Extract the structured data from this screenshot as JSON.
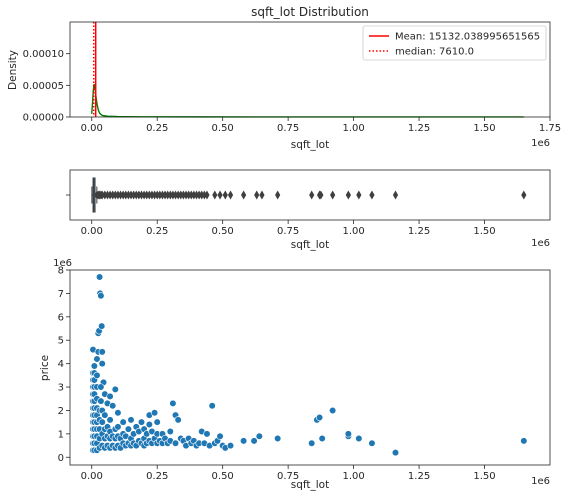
{
  "chart_data": [
    {
      "type": "line",
      "subtype": "kde",
      "title": "sqft_lot Distribution",
      "xlabel": "sqft_lot",
      "ylabel": "Density",
      "x_scale_label": "1e6",
      "xlim": [
        -0.083,
        1.75
      ],
      "ylim": [
        0,
        0.00015
      ],
      "xticks": [
        0,
        0.25,
        0.5,
        0.75,
        1.0,
        1.25,
        1.5,
        1.75
      ],
      "xtick_labels": [
        "0.00",
        "0.25",
        "0.50",
        "0.75",
        "1.00",
        "1.25",
        "1.50",
        "1.75"
      ],
      "yticks": [
        0,
        5e-05,
        0.0001
      ],
      "ytick_labels": [
        "0.00000",
        "0.00005",
        "0.00010"
      ],
      "series": [
        {
          "x": [
            0,
            0.003,
            0.006,
            0.009,
            0.012,
            0.015,
            0.02,
            0.025,
            0.03,
            0.04,
            0.06,
            0.1,
            0.2,
            0.4,
            0.8,
            1.2,
            1.65
          ],
          "values": [
            5e-06,
            2.2e-05,
            4.2e-05,
            5.2e-05,
            4.8e-05,
            3.6e-05,
            2.1e-05,
            1.1e-05,
            6e-06,
            2.5e-06,
            1.2e-06,
            6e-07,
            3e-07,
            2e-07,
            1.5e-07,
            1.2e-07,
            1e-07
          ],
          "color": "#008000"
        }
      ],
      "vlines": [
        {
          "label": "Mean: 15132.038995651565",
          "x": 0.015132,
          "color": "#ff0000",
          "style": "solid"
        },
        {
          "label": "median: 7610.0",
          "x": 0.00761,
          "color": "#ff0000",
          "style": "dotted"
        }
      ],
      "legend": "top-right",
      "grid": false
    },
    {
      "type": "box",
      "xlabel": "sqft_lot",
      "x_scale_label": "1e6",
      "xlim": [
        -0.083,
        1.75
      ],
      "xticks": [
        0,
        0.25,
        0.5,
        0.75,
        1.0,
        1.25,
        1.5
      ],
      "xtick_labels": [
        "0.00",
        "0.25",
        "0.50",
        "0.75",
        "1.00",
        "1.25",
        "1.50"
      ],
      "box": {
        "q1": 0.005,
        "median": 0.0076,
        "q3": 0.0107,
        "whisker_low": 0.00052,
        "whisker_high": 0.0195
      },
      "outliers": [
        0.02,
        0.025,
        0.03,
        0.035,
        0.04,
        0.05,
        0.06,
        0.07,
        0.08,
        0.09,
        0.1,
        0.11,
        0.12,
        0.13,
        0.14,
        0.15,
        0.16,
        0.17,
        0.18,
        0.19,
        0.2,
        0.21,
        0.22,
        0.23,
        0.24,
        0.25,
        0.26,
        0.27,
        0.28,
        0.29,
        0.3,
        0.31,
        0.32,
        0.33,
        0.34,
        0.35,
        0.36,
        0.37,
        0.38,
        0.39,
        0.4,
        0.41,
        0.42,
        0.43,
        0.44,
        0.47,
        0.49,
        0.51,
        0.53,
        0.58,
        0.63,
        0.65,
        0.71,
        0.84,
        0.87,
        0.875,
        0.92,
        0.98,
        1.02,
        1.07,
        1.16,
        1.65
      ],
      "grid": false
    },
    {
      "type": "scatter",
      "xlabel": "sqft_lot",
      "ylabel": "price",
      "x_scale_label": "1e6",
      "y_scale_label": "1e6",
      "xlim": [
        -0.083,
        1.75
      ],
      "ylim": [
        -0.33,
        8
      ],
      "xticks": [
        0,
        0.25,
        0.5,
        0.75,
        1.0,
        1.25,
        1.5
      ],
      "xtick_labels": [
        "0.00",
        "0.25",
        "0.50",
        "0.75",
        "1.00",
        "1.25",
        "1.50"
      ],
      "yticks": [
        0,
        1,
        2,
        3,
        4,
        5,
        6,
        7,
        8
      ],
      "ytick_labels": [
        "0",
        "1",
        "2",
        "3",
        "4",
        "5",
        "6",
        "7",
        "8"
      ],
      "points": [
        [
          0.005,
          0.3
        ],
        [
          0.005,
          0.6
        ],
        [
          0.005,
          0.9
        ],
        [
          0.005,
          1.2
        ],
        [
          0.005,
          1.5
        ],
        [
          0.005,
          1.8
        ],
        [
          0.005,
          2.1
        ],
        [
          0.005,
          2.4
        ],
        [
          0.005,
          2.7
        ],
        [
          0.005,
          3.0
        ],
        [
          0.005,
          3.3
        ],
        [
          0.005,
          3.6
        ],
        [
          0.005,
          4.6
        ],
        [
          0.01,
          0.3
        ],
        [
          0.01,
          0.6
        ],
        [
          0.01,
          0.9
        ],
        [
          0.01,
          1.2
        ],
        [
          0.01,
          1.5
        ],
        [
          0.01,
          1.8
        ],
        [
          0.01,
          2.1
        ],
        [
          0.01,
          2.4
        ],
        [
          0.01,
          2.7
        ],
        [
          0.01,
          3.0
        ],
        [
          0.01,
          3.3
        ],
        [
          0.01,
          3.6
        ],
        [
          0.01,
          3.9
        ],
        [
          0.02,
          0.3
        ],
        [
          0.02,
          0.6
        ],
        [
          0.02,
          0.9
        ],
        [
          0.02,
          1.2
        ],
        [
          0.02,
          1.5
        ],
        [
          0.02,
          1.8
        ],
        [
          0.02,
          2.1
        ],
        [
          0.02,
          2.5
        ],
        [
          0.02,
          3.0
        ],
        [
          0.02,
          3.5
        ],
        [
          0.02,
          4.2
        ],
        [
          0.025,
          4.5
        ],
        [
          0.025,
          5.3
        ],
        [
          0.028,
          5.4
        ],
        [
          0.03,
          7.7
        ],
        [
          0.032,
          7.0
        ],
        [
          0.035,
          6.9
        ],
        [
          0.038,
          5.6
        ],
        [
          0.04,
          4.0
        ],
        [
          0.04,
          4.5
        ],
        [
          0.045,
          3.2
        ],
        [
          0.05,
          2.7
        ],
        [
          0.03,
          0.4
        ],
        [
          0.03,
          0.8
        ],
        [
          0.03,
          1.2
        ],
        [
          0.03,
          1.6
        ],
        [
          0.03,
          2.0
        ],
        [
          0.035,
          2.4
        ],
        [
          0.035,
          3.0
        ],
        [
          0.04,
          0.5
        ],
        [
          0.04,
          1.0
        ],
        [
          0.04,
          1.5
        ],
        [
          0.04,
          2.0
        ],
        [
          0.05,
          0.4
        ],
        [
          0.05,
          0.8
        ],
        [
          0.05,
          1.2
        ],
        [
          0.05,
          1.8
        ],
        [
          0.06,
          0.5
        ],
        [
          0.06,
          0.9
        ],
        [
          0.06,
          1.3
        ],
        [
          0.06,
          2.3
        ],
        [
          0.07,
          0.4
        ],
        [
          0.07,
          0.8
        ],
        [
          0.07,
          1.1
        ],
        [
          0.07,
          1.6
        ],
        [
          0.07,
          2.6
        ],
        [
          0.08,
          0.5
        ],
        [
          0.08,
          0.9
        ],
        [
          0.08,
          2.2
        ],
        [
          0.09,
          0.4
        ],
        [
          0.09,
          0.8
        ],
        [
          0.09,
          1.2
        ],
        [
          0.09,
          2.9
        ],
        [
          0.1,
          0.5
        ],
        [
          0.1,
          0.9
        ],
        [
          0.1,
          1.3
        ],
        [
          0.1,
          1.9
        ],
        [
          0.11,
          0.4
        ],
        [
          0.11,
          0.8
        ],
        [
          0.12,
          0.6
        ],
        [
          0.12,
          1.0
        ],
        [
          0.12,
          1.5
        ],
        [
          0.13,
          0.5
        ],
        [
          0.13,
          0.9
        ],
        [
          0.14,
          0.6
        ],
        [
          0.14,
          1.2
        ],
        [
          0.15,
          0.5
        ],
        [
          0.15,
          0.8
        ],
        [
          0.15,
          1.6
        ],
        [
          0.16,
          0.6
        ],
        [
          0.16,
          1.0
        ],
        [
          0.17,
          0.5
        ],
        [
          0.17,
          1.3
        ],
        [
          0.18,
          0.7
        ],
        [
          0.18,
          1.1
        ],
        [
          0.19,
          0.6
        ],
        [
          0.19,
          1.5
        ],
        [
          0.2,
          0.5
        ],
        [
          0.2,
          0.8
        ],
        [
          0.2,
          1.2
        ],
        [
          0.21,
          0.6
        ],
        [
          0.21,
          1.0
        ],
        [
          0.22,
          0.7
        ],
        [
          0.22,
          1.4
        ],
        [
          0.22,
          1.8
        ],
        [
          0.23,
          0.6
        ],
        [
          0.23,
          1.1
        ],
        [
          0.24,
          0.8
        ],
        [
          0.24,
          1.9
        ],
        [
          0.25,
          0.6
        ],
        [
          0.25,
          1.0
        ],
        [
          0.25,
          1.5
        ],
        [
          0.26,
          0.7
        ],
        [
          0.27,
          0.6
        ],
        [
          0.27,
          1.0
        ],
        [
          0.28,
          0.8
        ],
        [
          0.29,
          0.6
        ],
        [
          0.3,
          0.7
        ],
        [
          0.3,
          1.1
        ],
        [
          0.31,
          2.3
        ],
        [
          0.32,
          0.6
        ],
        [
          0.32,
          1.8
        ],
        [
          0.33,
          1.6
        ],
        [
          0.34,
          0.8
        ],
        [
          0.35,
          0.7
        ],
        [
          0.36,
          0.5
        ],
        [
          0.37,
          0.8
        ],
        [
          0.38,
          0.6
        ],
        [
          0.39,
          0.7
        ],
        [
          0.4,
          0.5
        ],
        [
          0.41,
          0.6
        ],
        [
          0.42,
          1.1
        ],
        [
          0.43,
          0.6
        ],
        [
          0.44,
          1.0
        ],
        [
          0.45,
          0.5
        ],
        [
          0.46,
          2.2
        ],
        [
          0.47,
          0.6
        ],
        [
          0.48,
          0.7
        ],
        [
          0.49,
          0.9
        ],
        [
          0.5,
          0.5
        ],
        [
          0.51,
          0.4
        ],
        [
          0.53,
          0.5
        ],
        [
          0.58,
          0.7
        ],
        [
          0.62,
          0.7
        ],
        [
          0.64,
          0.9
        ],
        [
          0.71,
          0.8
        ],
        [
          0.84,
          0.6
        ],
        [
          0.86,
          1.6
        ],
        [
          0.87,
          1.7
        ],
        [
          0.88,
          0.8
        ],
        [
          0.92,
          2.0
        ],
        [
          0.98,
          0.9
        ],
        [
          0.98,
          1.0
        ],
        [
          1.02,
          0.8
        ],
        [
          1.07,
          0.6
        ],
        [
          1.16,
          0.2
        ],
        [
          1.65,
          0.7
        ]
      ],
      "color": "#1f77b4",
      "grid": false
    }
  ]
}
